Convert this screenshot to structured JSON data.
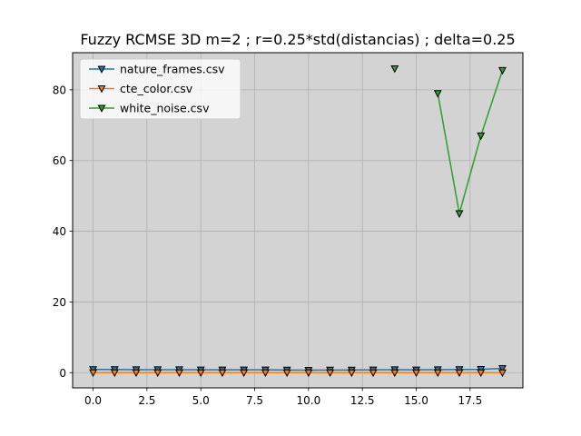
{
  "chart_data": {
    "type": "line",
    "title": "Fuzzy RCMSE 3D m=2 ; r=0.25*std(distancias) ; delta=0.25",
    "xlabel": "",
    "ylabel": "",
    "xlim": [
      -0.95,
      19.95
    ],
    "ylim": [
      -4.3,
      90.5
    ],
    "xticks": [
      0,
      2.5,
      5,
      7.5,
      10,
      12.5,
      15,
      17.5
    ],
    "xtick_labels": [
      "0.0",
      "2.5",
      "5.0",
      "7.5",
      "10.0",
      "12.5",
      "15.0",
      "17.5"
    ],
    "yticks": [
      0,
      20,
      40,
      60,
      80
    ],
    "ytick_labels": [
      "0",
      "20",
      "40",
      "60",
      "80"
    ],
    "grid": true,
    "background": "#d3d3d3",
    "legend_position": "upper-left",
    "marker": "triangle-down",
    "series": [
      {
        "name": "nature_frames.csv",
        "color": "#1f77b4",
        "x": [
          0,
          1,
          2,
          3,
          4,
          5,
          6,
          7,
          8,
          9,
          10,
          11,
          12,
          13,
          14,
          15,
          16,
          17,
          18,
          19
        ],
        "values": [
          0.9,
          0.9,
          0.85,
          0.85,
          0.85,
          0.8,
          0.8,
          0.8,
          0.8,
          0.75,
          0.7,
          0.75,
          0.75,
          0.8,
          0.85,
          0.8,
          0.85,
          0.9,
          0.95,
          1.2
        ]
      },
      {
        "name": "cte_color.csv",
        "color": "#ff7f0e",
        "x": [
          0,
          1,
          2,
          3,
          4,
          5,
          6,
          7,
          8,
          9,
          10,
          11,
          12,
          13,
          14,
          15,
          16,
          17,
          18,
          19
        ],
        "values": [
          0,
          0,
          0,
          0,
          0,
          0,
          0,
          0,
          0,
          0,
          0,
          0,
          0,
          0,
          0,
          0,
          0,
          0,
          0,
          0
        ]
      },
      {
        "name": "white_noise.csv",
        "color": "#2ca02c",
        "x": [
          0,
          1,
          2,
          3,
          4,
          5,
          6,
          7,
          8,
          9,
          10,
          11,
          12,
          13,
          14,
          15,
          16,
          17,
          18,
          19
        ],
        "values": [
          null,
          null,
          null,
          null,
          null,
          null,
          null,
          null,
          null,
          null,
          null,
          null,
          null,
          null,
          86.0,
          null,
          79.0,
          45.0,
          67.0,
          85.5
        ]
      }
    ]
  }
}
